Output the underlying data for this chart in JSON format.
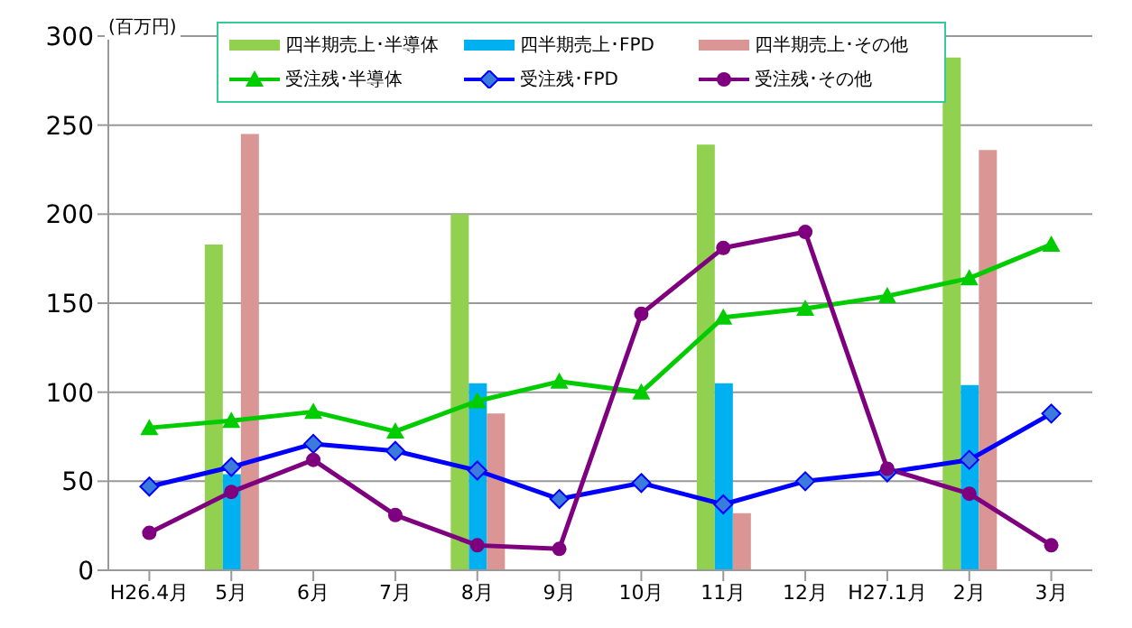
{
  "chart_data": {
    "type": "bar",
    "ylabel": "(百万円)",
    "categories": [
      "H26.4月",
      "5月",
      "6月",
      "7月",
      "8月",
      "9月",
      "10月",
      "11月",
      "12月",
      "H27.1月",
      "2月",
      "3月"
    ],
    "series": [
      {
        "name": "四半期売上･半導体",
        "color": "#92d050",
        "values": [
          null,
          183,
          null,
          null,
          200,
          null,
          null,
          239,
          null,
          null,
          288,
          null
        ]
      },
      {
        "name": "四半期売上･FPD",
        "color": "#00b0f0",
        "values": [
          null,
          54,
          null,
          null,
          105,
          null,
          null,
          105,
          null,
          null,
          104,
          null
        ]
      },
      {
        "name": "四半期売上･その他",
        "color": "#d99694",
        "values": [
          null,
          245,
          null,
          null,
          88,
          null,
          null,
          32,
          null,
          null,
          236,
          null
        ]
      },
      {
        "name": "受注残･半導体",
        "type": "line",
        "marker": "triangle",
        "color": "#00cc00",
        "values": [
          80,
          84,
          89,
          78,
          95,
          106,
          100,
          142,
          147,
          154,
          164,
          183
        ]
      },
      {
        "name": "受注残･FPD",
        "type": "line",
        "marker": "diamond",
        "color": "#0000ff",
        "values": [
          47,
          58,
          71,
          67,
          56,
          40,
          49,
          37,
          50,
          55,
          62,
          88
        ]
      },
      {
        "name": "受注残･その他",
        "type": "line",
        "marker": "circle",
        "color": "#7f007f",
        "values": [
          21,
          44,
          62,
          31,
          14,
          12,
          144,
          181,
          190,
          57,
          43,
          14
        ]
      }
    ],
    "ylim": [
      0,
      300
    ],
    "yticks": [
      0,
      50,
      100,
      150,
      200,
      250,
      300
    ],
    "grid": "y",
    "legend": "top"
  }
}
